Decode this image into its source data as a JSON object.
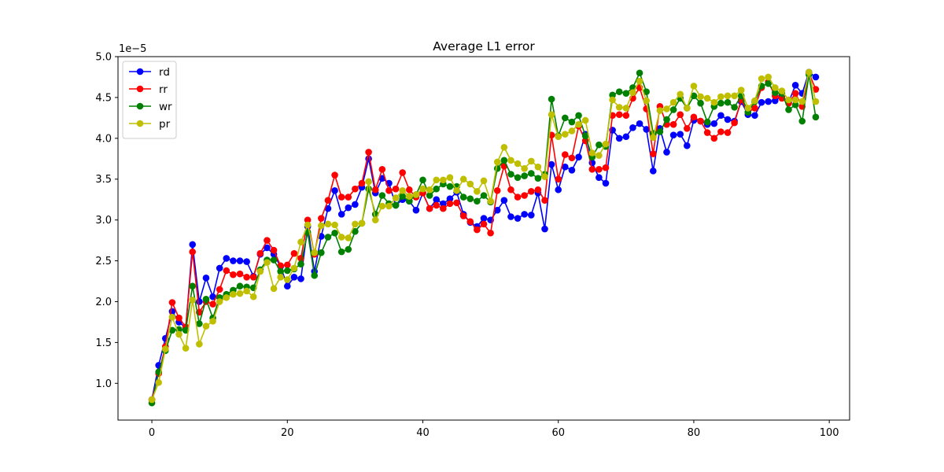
{
  "chart_data": {
    "type": "line",
    "title": "Average L1 error",
    "xlabel": "",
    "ylabel": "",
    "offset_label": "1e−5",
    "xlim": [
      -5.0,
      103.0
    ],
    "ylim": [
      0.55,
      5.0
    ],
    "xticks": [
      0,
      20,
      40,
      60,
      80,
      100
    ],
    "yticks": [
      1.0,
      1.5,
      2.0,
      2.5,
      3.0,
      3.5,
      4.0,
      4.5,
      5.0
    ],
    "ytick_labels": [
      "1.0",
      "1.5",
      "2.0",
      "2.5",
      "3.0",
      "3.5",
      "4.0",
      "4.5",
      "5.0"
    ],
    "grid": false,
    "legend_position": "upper-left",
    "x": [
      0,
      1,
      2,
      3,
      4,
      5,
      6,
      7,
      8,
      9,
      10,
      11,
      12,
      13,
      14,
      15,
      16,
      17,
      18,
      19,
      20,
      21,
      22,
      23,
      24,
      25,
      26,
      27,
      28,
      29,
      30,
      31,
      32,
      33,
      34,
      35,
      36,
      37,
      38,
      39,
      40,
      41,
      42,
      43,
      44,
      45,
      46,
      47,
      48,
      49,
      50,
      51,
      52,
      53,
      54,
      55,
      56,
      57,
      58,
      59,
      60,
      61,
      62,
      63,
      64,
      65,
      66,
      67,
      68,
      69,
      70,
      71,
      72,
      73,
      74,
      75,
      76,
      77,
      78,
      79,
      80,
      81,
      82,
      83,
      84,
      85,
      86,
      87,
      88,
      89,
      90,
      91,
      92,
      93,
      94,
      95,
      96,
      97,
      98
    ],
    "series": [
      {
        "name": "rd",
        "color": "#0000ff",
        "values": [
          0.8,
          1.22,
          1.55,
          1.88,
          1.75,
          1.68,
          2.7,
          2.0,
          2.29,
          2.06,
          2.41,
          2.53,
          2.5,
          2.5,
          2.49,
          2.31,
          2.58,
          2.66,
          2.58,
          2.43,
          2.19,
          2.3,
          2.28,
          2.92,
          2.37,
          2.8,
          3.14,
          3.36,
          3.07,
          3.15,
          3.19,
          3.4,
          3.75,
          3.33,
          3.51,
          3.45,
          3.18,
          3.25,
          3.23,
          3.12,
          3.33,
          3.14,
          3.25,
          3.2,
          3.26,
          3.34,
          3.07,
          2.97,
          2.92,
          3.02,
          3.0,
          3.12,
          3.24,
          3.04,
          3.02,
          3.07,
          3.06,
          3.33,
          2.89,
          3.68,
          3.37,
          3.65,
          3.61,
          3.77,
          4.05,
          3.7,
          3.52,
          3.45,
          4.1,
          4.0,
          4.02,
          4.13,
          4.18,
          4.11,
          3.6,
          4.12,
          3.83,
          4.04,
          4.05,
          3.91,
          4.22,
          4.21,
          4.17,
          4.18,
          4.28,
          4.23,
          4.21,
          4.45,
          4.29,
          4.28,
          4.44,
          4.45,
          4.46,
          4.52,
          4.44,
          4.65,
          4.55,
          4.81,
          4.75
        ]
      },
      {
        "name": "rr",
        "color": "#ff0000",
        "values": [
          0.8,
          1.12,
          1.45,
          1.99,
          1.8,
          1.69,
          2.61,
          1.87,
          2.0,
          1.97,
          2.15,
          2.38,
          2.33,
          2.34,
          2.3,
          2.3,
          2.59,
          2.75,
          2.63,
          2.44,
          2.45,
          2.59,
          2.53,
          3.0,
          2.58,
          3.02,
          3.24,
          3.55,
          3.28,
          3.28,
          3.38,
          3.45,
          3.83,
          3.37,
          3.62,
          3.36,
          3.38,
          3.58,
          3.37,
          3.28,
          3.33,
          3.14,
          3.18,
          3.14,
          3.2,
          3.21,
          3.05,
          2.98,
          2.88,
          2.95,
          2.84,
          3.36,
          3.66,
          3.37,
          3.28,
          3.3,
          3.35,
          3.37,
          3.24,
          4.04,
          3.5,
          3.8,
          3.76,
          4.15,
          3.97,
          3.62,
          3.62,
          3.64,
          4.28,
          4.29,
          4.28,
          4.49,
          4.62,
          4.36,
          3.81,
          4.39,
          4.17,
          4.17,
          4.29,
          4.12,
          4.26,
          4.21,
          4.07,
          4.0,
          4.08,
          4.07,
          4.19,
          4.47,
          4.32,
          4.37,
          4.62,
          4.69,
          4.52,
          4.49,
          4.43,
          4.55,
          4.39,
          4.8,
          4.6
        ]
      },
      {
        "name": "wr",
        "color": "#008000",
        "values": [
          0.76,
          1.14,
          1.4,
          1.65,
          1.66,
          1.65,
          2.19,
          1.73,
          2.03,
          1.8,
          2.05,
          2.09,
          2.14,
          2.19,
          2.18,
          2.17,
          2.39,
          2.51,
          2.51,
          2.37,
          2.38,
          2.4,
          2.46,
          2.85,
          2.32,
          2.6,
          2.79,
          2.84,
          2.61,
          2.64,
          2.86,
          2.96,
          3.38,
          3.07,
          3.3,
          3.2,
          3.18,
          3.29,
          3.23,
          3.31,
          3.49,
          3.3,
          3.38,
          3.44,
          3.41,
          3.41,
          3.28,
          3.26,
          3.23,
          3.3,
          3.22,
          3.63,
          3.73,
          3.56,
          3.52,
          3.54,
          3.57,
          3.51,
          3.56,
          4.48,
          4.03,
          4.25,
          4.2,
          4.28,
          4.03,
          3.77,
          3.92,
          3.9,
          4.53,
          4.57,
          4.55,
          4.62,
          4.8,
          4.57,
          4.06,
          4.08,
          4.23,
          4.35,
          4.49,
          4.37,
          4.52,
          4.43,
          4.2,
          4.39,
          4.43,
          4.44,
          4.38,
          4.52,
          4.32,
          4.45,
          4.64,
          4.67,
          4.56,
          4.55,
          4.35,
          4.41,
          4.21,
          4.78,
          4.26
        ]
      },
      {
        "name": "pr",
        "color": "#bfbf00",
        "values": [
          0.8,
          1.01,
          1.42,
          1.81,
          1.6,
          1.43,
          2.02,
          1.48,
          1.7,
          1.76,
          2.0,
          2.05,
          2.09,
          2.1,
          2.13,
          2.06,
          2.37,
          2.48,
          2.16,
          2.3,
          2.27,
          2.41,
          2.73,
          2.94,
          2.6,
          2.93,
          2.95,
          2.94,
          2.79,
          2.78,
          2.95,
          2.96,
          3.47,
          3.0,
          3.17,
          3.17,
          3.27,
          3.36,
          3.29,
          3.31,
          3.38,
          3.37,
          3.49,
          3.49,
          3.52,
          3.36,
          3.5,
          3.44,
          3.35,
          3.48,
          3.23,
          3.71,
          3.89,
          3.73,
          3.69,
          3.63,
          3.72,
          3.65,
          3.53,
          4.29,
          4.02,
          4.05,
          4.09,
          4.17,
          4.22,
          3.82,
          3.79,
          3.93,
          4.47,
          4.38,
          4.37,
          4.56,
          4.7,
          4.46,
          4.01,
          4.34,
          4.36,
          4.44,
          4.54,
          4.37,
          4.64,
          4.51,
          4.49,
          4.44,
          4.51,
          4.52,
          4.52,
          4.59,
          4.37,
          4.46,
          4.73,
          4.75,
          4.62,
          4.58,
          4.47,
          4.47,
          4.45,
          4.81,
          4.45
        ]
      }
    ]
  }
}
